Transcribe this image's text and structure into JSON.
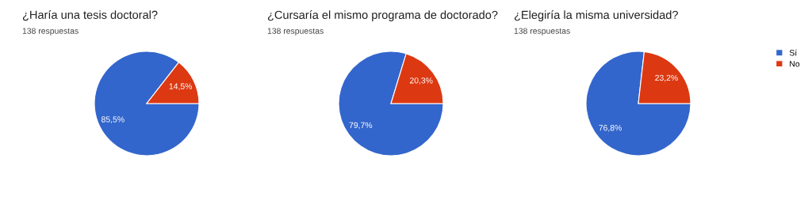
{
  "chart_data": [
    {
      "type": "pie",
      "title": "¿Haría una tesis doctoral?",
      "subtitle": "138 respuestas",
      "categories": [
        "Sí",
        "No"
      ],
      "values": [
        85.5,
        14.5
      ],
      "value_labels": [
        "85,5%",
        "14,5%"
      ],
      "colors": [
        "#3366cc",
        "#dc3912"
      ],
      "legend": "right"
    },
    {
      "type": "pie",
      "title": "¿Cursaría el mismo programa de doctorado?",
      "subtitle": "138 respuestas",
      "categories": [
        null,
        null
      ],
      "values": [
        79.7,
        20.3
      ],
      "value_labels": [
        "79,7%",
        "20,3%"
      ],
      "colors": [
        "#3366cc",
        "#dc3912"
      ],
      "legend": false
    },
    {
      "type": "pie",
      "title": "¿Elegiría la misma universidad?",
      "subtitle": "138 respuestas",
      "categories": [
        null,
        null
      ],
      "values": [
        76.8,
        23.2
      ],
      "value_labels": [
        "76,8%",
        "23,2%"
      ],
      "colors": [
        "#3366cc",
        "#dc3912"
      ],
      "legend": false
    }
  ]
}
